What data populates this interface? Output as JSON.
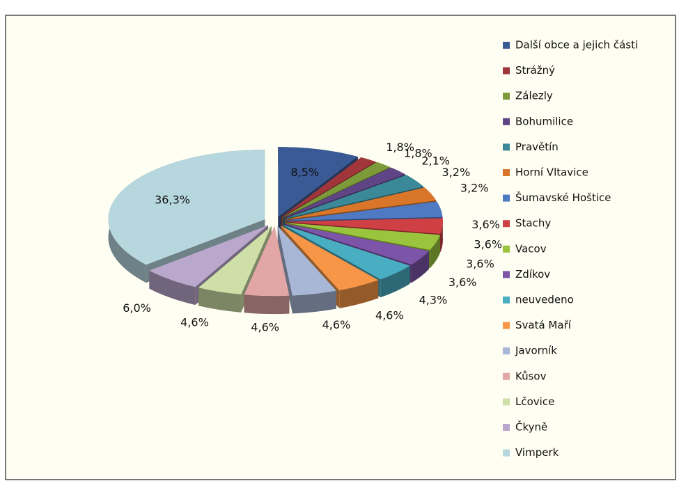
{
  "chart_data": {
    "type": "pie",
    "categories": [
      "Další obce a jejich části",
      "Strážný",
      "Zálezly",
      "Bohumilice",
      "Pravětín",
      "Horní Vltavice",
      "Šumavské Hoštice",
      "Stachy",
      "Vacov",
      "Zdíkov",
      "neuvedeno",
      "Svatá Maří",
      "Javorník",
      "Kůsov",
      "Lčovice",
      "Čkyně",
      "Vimperk"
    ],
    "values": [
      8.5,
      1.8,
      1.8,
      2.1,
      3.2,
      3.2,
      3.6,
      3.6,
      3.6,
      3.6,
      4.3,
      4.6,
      4.6,
      4.6,
      4.6,
      6.0,
      36.3
    ],
    "value_labels": [
      "8,5%",
      "1,8%",
      "1,8%",
      "2,1%",
      "3,2%",
      "3,2%",
      "3,6%",
      "3,6%",
      "3,6%",
      "3,6%",
      "4,3%",
      "4,6%",
      "4,6%",
      "4,6%",
      "4,6%",
      "6,0%",
      "36,3%"
    ],
    "colors": [
      "#3a5a95",
      "#a0353a",
      "#7c9a3a",
      "#5f4585",
      "#3a8898",
      "#d9762a",
      "#4f79c2",
      "#cf4045",
      "#9bc43e",
      "#7d55a8",
      "#4aaec3",
      "#f79646",
      "#a9b7d6",
      "#e3a6a6",
      "#cfdfa8",
      "#baa8cc",
      "#b7d7df"
    ],
    "legend": "right"
  }
}
